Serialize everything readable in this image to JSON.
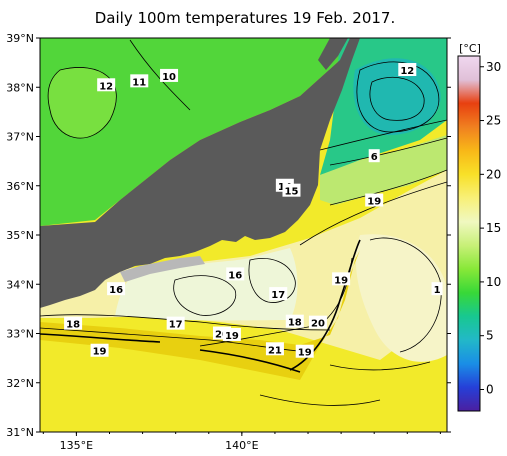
{
  "title": "Daily 100m temperatures 19 Feb. 2017.",
  "axes": {
    "lat_ticks": [
      "39°N",
      "38°N",
      "37°N",
      "36°N",
      "35°N",
      "34°N",
      "33°N",
      "32°N",
      "31°N"
    ],
    "lon_ticks": [
      "135°E",
      "140°E"
    ],
    "lon_range": [
      133.9,
      146.2
    ],
    "lat_range": [
      31.0,
      39.0
    ]
  },
  "colorbar": {
    "unit": "[°C]",
    "ticks": [
      "30",
      "25",
      "20",
      "15",
      "10",
      "5",
      "0"
    ],
    "range": [
      -2,
      31
    ],
    "colors": [
      "#4b1fa0",
      "#2540d8",
      "#1a8ee6",
      "#22b8c8",
      "#18c890",
      "#38d838",
      "#88e838",
      "#c8f078",
      "#f0f8c0",
      "#f8f078",
      "#f8e028",
      "#f8b818",
      "#f08020",
      "#e84010",
      "#e0c0d8",
      "#f0d8f0"
    ]
  },
  "contour_labels": [
    {
      "text": "12",
      "lon": 135.9,
      "lat": 38.04
    },
    {
      "text": "11",
      "lon": 136.9,
      "lat": 38.12
    },
    {
      "text": "10",
      "lon": 137.8,
      "lat": 38.23
    },
    {
      "text": "12",
      "lon": 145.0,
      "lat": 38.35
    },
    {
      "text": "6",
      "lon": 144.0,
      "lat": 36.6
    },
    {
      "text": "14",
      "lon": 141.3,
      "lat": 36.0
    },
    {
      "text": "15",
      "lon": 141.5,
      "lat": 35.9
    },
    {
      "text": "19",
      "lon": 144.0,
      "lat": 35.7
    },
    {
      "text": "16",
      "lon": 139.8,
      "lat": 34.2
    },
    {
      "text": "16",
      "lon": 136.2,
      "lat": 33.9
    },
    {
      "text": "17",
      "lon": 141.1,
      "lat": 33.8
    },
    {
      "text": "19",
      "lon": 143.0,
      "lat": 34.1
    },
    {
      "text": "1",
      "lon": 145.9,
      "lat": 33.9
    },
    {
      "text": "18",
      "lon": 134.9,
      "lat": 33.2
    },
    {
      "text": "17",
      "lon": 138.0,
      "lat": 33.2
    },
    {
      "text": "18",
      "lon": 141.6,
      "lat": 33.24
    },
    {
      "text": "20",
      "lon": 142.3,
      "lat": 33.22
    },
    {
      "text": "20",
      "lon": 139.4,
      "lat": 33.0
    },
    {
      "text": "19",
      "lon": 139.7,
      "lat": 32.97
    },
    {
      "text": "19",
      "lon": 135.7,
      "lat": 32.65
    },
    {
      "text": "21",
      "lon": 141.0,
      "lat": 32.68
    },
    {
      "text": "19",
      "lon": 141.9,
      "lat": 32.63
    }
  ]
}
